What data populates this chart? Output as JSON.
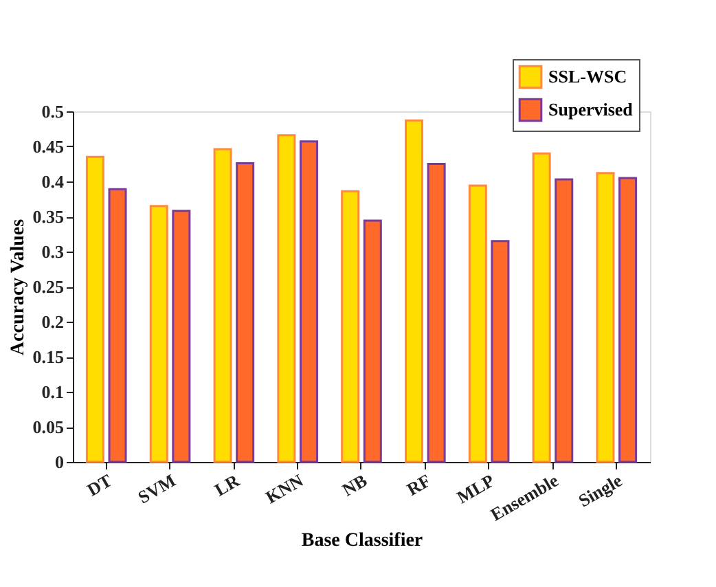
{
  "chart_data": {
    "type": "bar",
    "xlabel": "Base Classifier",
    "ylabel": "Accuracy  Values",
    "categories": [
      "DT",
      "SVM",
      "LR",
      "KNN",
      "NB",
      "RF",
      "MLP",
      "Ensemble",
      "Single"
    ],
    "series": [
      {
        "name": "SSL-WSC",
        "color": "#ffdd00",
        "values": [
          0.435,
          0.365,
          0.446,
          0.466,
          0.386,
          0.487,
          0.394,
          0.44,
          0.412
        ]
      },
      {
        "name": "Supervised",
        "color": "#ff6a2a",
        "values": [
          0.389,
          0.358,
          0.426,
          0.457,
          0.344,
          0.425,
          0.315,
          0.403,
          0.405
        ]
      }
    ],
    "ylim": [
      0,
      0.5
    ],
    "yticks": [
      0,
      0.05,
      0.1,
      0.15,
      0.2,
      0.25,
      0.3,
      0.35,
      0.4,
      0.45,
      0.5
    ],
    "grid": false,
    "legend": "top right"
  }
}
